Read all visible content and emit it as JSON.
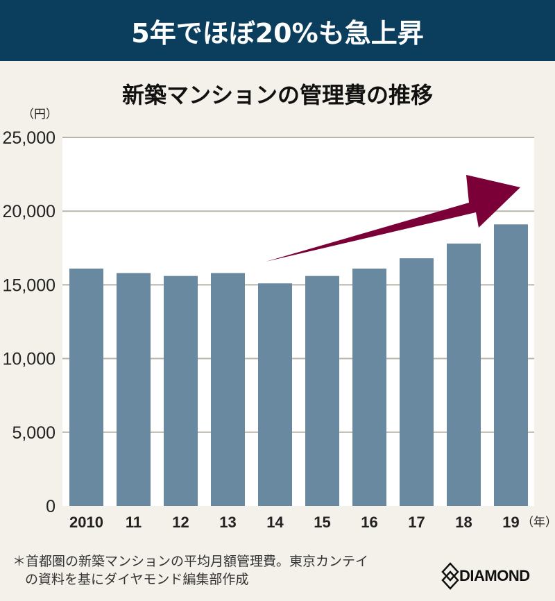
{
  "banner": "5年でほぼ20%も急上昇",
  "chart_data": {
    "type": "bar",
    "title": "新築マンションの管理費の推移",
    "ylabel": "（円）",
    "xlabel": "（年）",
    "categories": [
      "2010",
      "11",
      "12",
      "13",
      "14",
      "15",
      "16",
      "17",
      "18",
      "19"
    ],
    "values": [
      16100,
      15800,
      15600,
      15800,
      15100,
      15600,
      16100,
      16800,
      17800,
      19100
    ],
    "ylim": [
      0,
      25000
    ],
    "yticks": [
      0,
      5000,
      10000,
      15000,
      20000,
      25000
    ],
    "ytick_labels": [
      "0",
      "5,000",
      "10,000",
      "15,000",
      "20,000",
      "25,000"
    ],
    "grid": true,
    "bar_color": "#6889a0",
    "annotation": "upward trend arrow from 2014 to 2019",
    "arrow_color": "#7a0037"
  },
  "note": {
    "line1": "＊首都圏の新築マンションの平均月額管理費。東京カンテイ",
    "line2": "の資料を基にダイヤモンド編集部作成"
  },
  "logo": "DIAMOND"
}
